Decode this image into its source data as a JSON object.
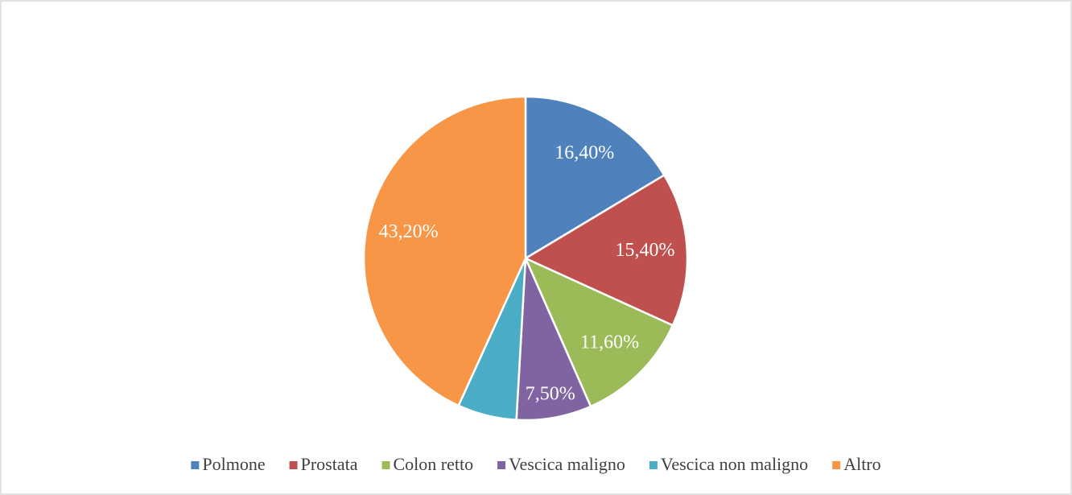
{
  "chart_data": {
    "type": "pie",
    "categories": [
      "Polmone",
      "Prostata",
      "Colon retto",
      "Vescica maligno",
      "Vescica non maligno",
      "Altro"
    ],
    "values": [
      16.4,
      15.4,
      11.6,
      7.5,
      5.9,
      43.2
    ],
    "value_labels": [
      "16,40%",
      "15,40%",
      "11,60%",
      "7,50%",
      null,
      "43,20%"
    ],
    "colors": [
      "#4f81bd",
      "#c0504d",
      "#9bbb59",
      "#8064a2",
      "#4bacc6",
      "#f79646"
    ],
    "legend": "bottom"
  }
}
